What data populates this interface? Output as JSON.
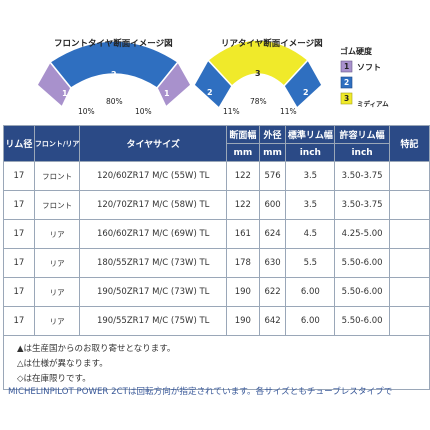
{
  "front_diagram": {
    "title": "フロントタイヤ断面イメージ図",
    "labels": [
      {
        "number": "1",
        "percent": "10%"
      },
      {
        "number": "2",
        "percent": "80%"
      },
      {
        "number": "1",
        "percent": "10%"
      }
    ]
  },
  "rear_diagram": {
    "title": "リアタイヤ断面イメージ図",
    "labels": [
      {
        "number": "2",
        "percent": "11%"
      },
      {
        "number": "3",
        "percent": "78%"
      },
      {
        "number": "2",
        "percent": "11%"
      }
    ]
  },
  "legend": {
    "title": "ゴム硬度",
    "items": [
      {
        "number": "1",
        "label": "ソフト",
        "color": "#a891cc"
      },
      {
        "number": "2",
        "label": "",
        "color": "#2f6fc0"
      },
      {
        "number": "3",
        "label": "ミディアム",
        "color": "#f0ea2a"
      }
    ]
  },
  "table": {
    "headers": {
      "rim": "リム径",
      "position": "フロント/リア",
      "size": "タイヤサイズ",
      "width": "断面幅",
      "width_unit": "mm",
      "diameter": "外径",
      "diameter_unit": "mm",
      "std_rim": "標準リム幅",
      "std_rim_unit": "inch",
      "allowed_rim": "許容リム幅",
      "allowed_rim_unit": "inch",
      "notes": "特記"
    },
    "rows": [
      {
        "rim": "17",
        "position": "フロント",
        "size": "120/60ZR17 M/C (55W) TL",
        "width": "122",
        "diameter": "576",
        "std_rim": "3.5",
        "allowed_rim": "3.50-3.75",
        "note": ""
      },
      {
        "rim": "17",
        "position": "フロント",
        "size": "120/70ZR17 M/C (58W) TL",
        "width": "122",
        "diameter": "600",
        "std_rim": "3.5",
        "allowed_rim": "3.50-3.75",
        "note": ""
      },
      {
        "rim": "17",
        "position": "リア",
        "size": "160/60ZR17 M/C (69W) TL",
        "width": "161",
        "diameter": "624",
        "std_rim": "4.5",
        "allowed_rim": "4.25-5.00",
        "note": ""
      },
      {
        "rim": "17",
        "position": "リア",
        "size": "180/55ZR17 M/C (73W) TL",
        "width": "178",
        "diameter": "630",
        "std_rim": "5.5",
        "allowed_rim": "5.50-6.00",
        "note": ""
      },
      {
        "rim": "17",
        "position": "リア",
        "size": "190/50ZR17 M/C (73W) TL",
        "width": "190",
        "diameter": "622",
        "std_rim": "6.00",
        "allowed_rim": "5.50-6.00",
        "note": ""
      },
      {
        "rim": "17",
        "position": "リア",
        "size": "190/55ZR17 M/C (75W) TL",
        "width": "190",
        "diameter": "642",
        "std_rim": "6.00",
        "allowed_rim": "5.50-6.00",
        "note": ""
      }
    ],
    "notes": [
      "▲は生産国からのお取り寄せとなります。",
      "△は仕様が異なります。",
      "◇は在庫限りです。"
    ]
  },
  "bottom_text": "MICHELINPILOT POWER 2CTは回転方向が指定されています。各サイズともチューブレスタイプで"
}
